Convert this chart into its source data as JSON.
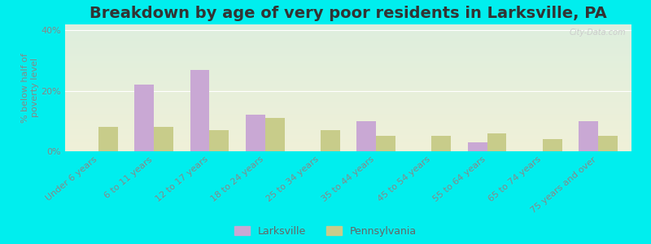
{
  "title": "Breakdown by age of very poor residents in Larksville, PA",
  "ylabel": "% below half of\npoverty level",
  "categories": [
    "Under 6 years",
    "6 to 11 years",
    "12 to 17 years",
    "18 to 24 years",
    "25 to 34 years",
    "35 to 44 years",
    "45 to 54 years",
    "55 to 64 years",
    "65 to 74 years",
    "75 years and over"
  ],
  "larksville_values": [
    0,
    22,
    27,
    12,
    0,
    10,
    0,
    3,
    0,
    10
  ],
  "pennsylvania_values": [
    8,
    8,
    7,
    11,
    7,
    5,
    5,
    6,
    4,
    5
  ],
  "larksville_color": "#c9a8d4",
  "pennsylvania_color": "#c8cc8a",
  "ylim": [
    0,
    42
  ],
  "yticks": [
    0,
    20,
    40
  ],
  "ytick_labels": [
    "0%",
    "20%",
    "40%"
  ],
  "bg_color_top": "#ddeedd",
  "bg_color_bottom": "#f0f0d8",
  "outer_bg": "#00eeee",
  "bar_width": 0.35,
  "title_fontsize": 14,
  "axis_label_fontsize": 8,
  "tick_label_fontsize": 8,
  "legend_labels": [
    "Larksville",
    "Pennsylvania"
  ],
  "watermark": "City-Data.com"
}
